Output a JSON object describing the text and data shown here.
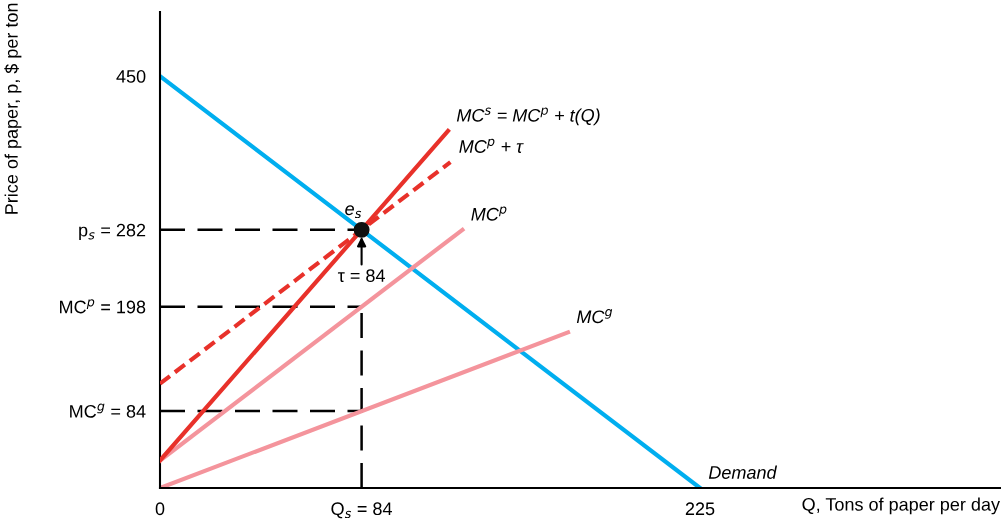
{
  "chart_data": {
    "type": "line",
    "xlabel": "Q, Tons of paper per day",
    "ylabel": "Price of paper, p, $ per ton",
    "xlim": [
      0,
      350
    ],
    "ylim": [
      0,
      520
    ],
    "xticks": [
      0,
      {
        "value": 84,
        "label": "Q$_{s}$ = 84"
      },
      225
    ],
    "yticks": [
      {
        "value": 84,
        "label": "MC$^{g}$ = 84"
      },
      {
        "value": 198,
        "label": "MC$^{p}$ = 198"
      },
      {
        "value": 282,
        "label": "p$_{s}$ = 282"
      },
      450
    ],
    "grid": false,
    "legend": false,
    "series": [
      {
        "x": [
          0,
          84
        ],
        "values": [
          282,
          282
        ],
        "color": "#000000",
        "line_style": "dashed"
      },
      {
        "x": [
          0,
          84
        ],
        "values": [
          198,
          198
        ],
        "color": "#000000",
        "line_style": "dashed"
      },
      {
        "x": [
          0,
          84
        ],
        "values": [
          84,
          84
        ],
        "color": "#000000",
        "line_style": "dashed"
      },
      {
        "x": [
          84,
          84
        ],
        "values": [
          0,
          198
        ],
        "color": "#000000",
        "line_style": "dashed"
      },
      {
        "name": "Demand",
        "x": [
          0,
          225
        ],
        "values": [
          450,
          0
        ],
        "color": "#00aeef",
        "line_style": "solid"
      },
      {
        "name": "MC$^{g}$",
        "x": [
          0,
          170
        ],
        "values": [
          0,
          170
        ],
        "color": "#f4949c",
        "line_style": "solid"
      },
      {
        "name": "MC$^{p}$",
        "x": [
          0,
          126
        ],
        "values": [
          30,
          282
        ],
        "color": "#f4949c",
        "line_style": "solid"
      },
      {
        "name": "MC$^{p}$ + τ",
        "x": [
          0,
          121
        ],
        "values": [
          114,
          356
        ],
        "color": "#e8312a",
        "line_style": "dotted"
      },
      {
        "name": "MC$^{s}$ = MC$^{p}$ + t(Q)",
        "x": [
          0,
          120
        ],
        "values": [
          30,
          390
        ],
        "color": "#e8312a",
        "line_style": "solid"
      },
      {
        "name": "e$_{s}$",
        "type": "scatter",
        "x": [
          84
        ],
        "values": [
          282
        ],
        "color": "#111111",
        "marker": "circle"
      }
    ],
    "annotations": [
      {
        "text": "τ = 84",
        "x": 84,
        "y": 282
      }
    ]
  }
}
